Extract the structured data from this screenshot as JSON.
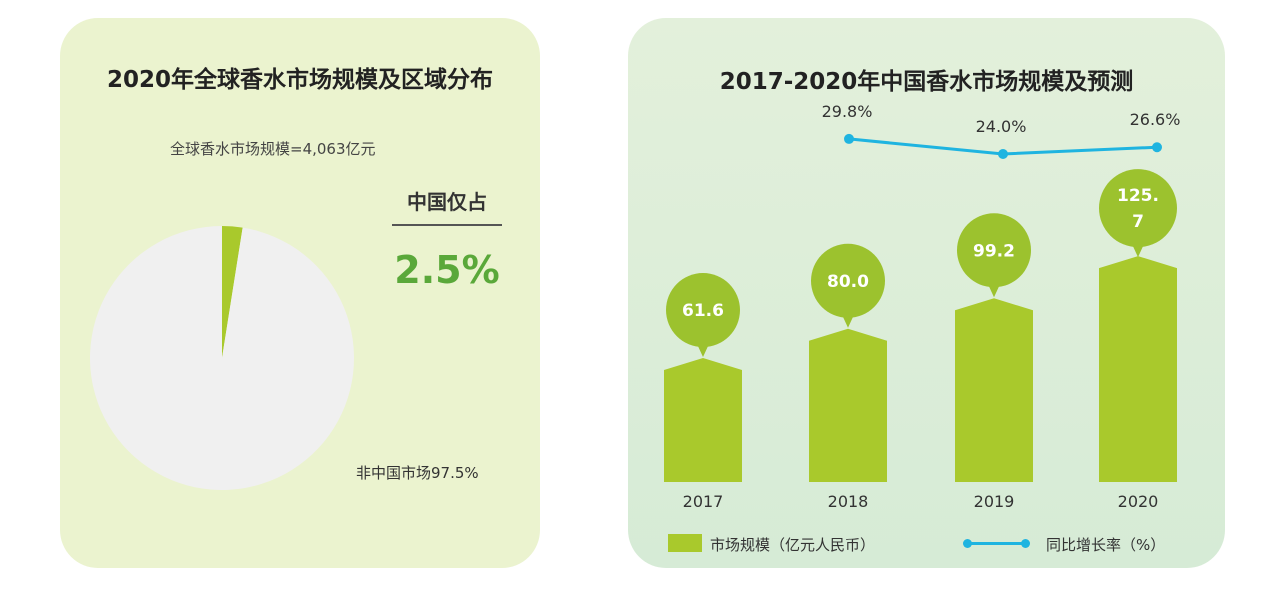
{
  "chart_data": [
    {
      "type": "pie",
      "title": "2020年全球香水市场规模及区域分布",
      "subtitle": "全球香水市场规模=4,063亿元",
      "callout_label": "中国仅占",
      "callout_value": "2.5%",
      "slices": [
        {
          "label": "中国",
          "value": 2.5,
          "color": "#a9c92c"
        },
        {
          "label": "非中国市场97.5%",
          "value": 97.5,
          "color": "#f0f0f0"
        }
      ]
    },
    {
      "type": "bar",
      "title": "2017-2020年中国香水市场规模及预测",
      "categories": [
        "2017",
        "2018",
        "2019",
        "2020"
      ],
      "series": [
        {
          "name": "市场规模（亿元人民币）",
          "type": "bar",
          "values": [
            61.6,
            80.0,
            99.2,
            125.7
          ],
          "labels": [
            "61.6",
            "80.0",
            "99.2",
            "125.\n7"
          ],
          "color": "#a9c92c"
        },
        {
          "name": "同比增长率（%）",
          "type": "line",
          "values": [
            null,
            29.8,
            24.0,
            26.6
          ],
          "labels": [
            "",
            "29.8%",
            "24.0%",
            "26.6%"
          ],
          "color": "#1fb4e0"
        }
      ]
    }
  ]
}
